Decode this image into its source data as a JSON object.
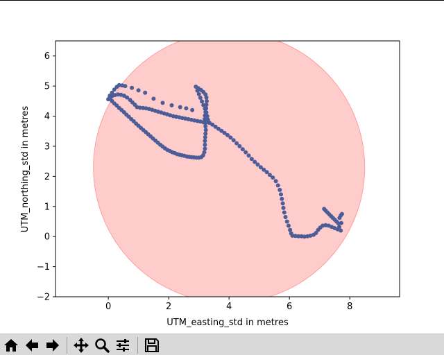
{
  "toolbar": {
    "buttons": [
      {
        "name": "home-button",
        "icon": "home-icon"
      },
      {
        "name": "back-button",
        "icon": "arrow-left-icon"
      },
      {
        "name": "forward-button",
        "icon": "arrow-right-icon"
      },
      {
        "name": "pan-button",
        "icon": "move-icon"
      },
      {
        "name": "zoom-button",
        "icon": "magnifier-icon"
      },
      {
        "name": "configure-subplots-button",
        "icon": "sliders-icon"
      },
      {
        "name": "save-button",
        "icon": "floppy-disk-icon"
      }
    ]
  },
  "chart_data": {
    "type": "scatter",
    "title": "",
    "xlabel": "UTM_easting_std in metres",
    "ylabel": "UTM_northing_std in metres",
    "xlim": [
      -1.75,
      9.65
    ],
    "ylim": [
      -2.0,
      6.5
    ],
    "x_ticks": [
      0,
      2,
      4,
      6,
      8
    ],
    "y_ticks": [
      -2,
      -1,
      0,
      1,
      2,
      3,
      4,
      5,
      6
    ],
    "grid": false,
    "marker_color": "#4c5c96",
    "circle": {
      "center": [
        4.0,
        2.3
      ],
      "radius": 4.5,
      "fill": "#ff0000",
      "alpha": 0.2
    },
    "points": [
      [
        0.05,
        4.58
      ],
      [
        0.12,
        4.5
      ],
      [
        0.2,
        4.42
      ],
      [
        0.28,
        4.35
      ],
      [
        0.36,
        4.27
      ],
      [
        0.44,
        4.2
      ],
      [
        0.52,
        4.13
      ],
      [
        0.6,
        4.05
      ],
      [
        0.68,
        3.98
      ],
      [
        0.76,
        3.9
      ],
      [
        0.84,
        3.83
      ],
      [
        0.92,
        3.75
      ],
      [
        1.0,
        3.68
      ],
      [
        1.08,
        3.61
      ],
      [
        1.16,
        3.54
      ],
      [
        1.24,
        3.47
      ],
      [
        1.32,
        3.4
      ],
      [
        1.4,
        3.33
      ],
      [
        1.48,
        3.26
      ],
      [
        1.56,
        3.19
      ],
      [
        1.64,
        3.12
      ],
      [
        1.72,
        3.05
      ],
      [
        1.8,
        2.99
      ],
      [
        1.88,
        2.93
      ],
      [
        1.96,
        2.88
      ],
      [
        2.04,
        2.84
      ],
      [
        2.12,
        2.8
      ],
      [
        2.2,
        2.77
      ],
      [
        2.28,
        2.74
      ],
      [
        2.36,
        2.72
      ],
      [
        2.44,
        2.7
      ],
      [
        2.52,
        2.68
      ],
      [
        2.6,
        2.66
      ],
      [
        2.68,
        2.65
      ],
      [
        2.76,
        2.64
      ],
      [
        2.84,
        2.63
      ],
      [
        2.92,
        2.62
      ],
      [
        3.0,
        2.62
      ],
      [
        3.08,
        2.64
      ],
      [
        3.14,
        2.7
      ],
      [
        3.18,
        2.8
      ],
      [
        3.2,
        2.92
      ],
      [
        3.2,
        3.05
      ],
      [
        3.2,
        3.18
      ],
      [
        3.21,
        3.3
      ],
      [
        3.22,
        3.42
      ],
      [
        3.23,
        3.54
      ],
      [
        3.22,
        3.66
      ],
      [
        3.2,
        3.78
      ],
      [
        3.19,
        3.9
      ],
      [
        3.2,
        4.02
      ],
      [
        3.22,
        4.14
      ],
      [
        3.24,
        4.26
      ],
      [
        3.25,
        4.38
      ],
      [
        3.26,
        4.5
      ],
      [
        3.25,
        4.62
      ],
      [
        3.22,
        4.72
      ],
      [
        3.15,
        4.8
      ],
      [
        3.07,
        4.87
      ],
      [
        2.98,
        4.93
      ],
      [
        2.9,
        4.98
      ],
      [
        2.95,
        4.85
      ],
      [
        3.0,
        4.73
      ],
      [
        3.05,
        4.61
      ],
      [
        3.1,
        4.49
      ],
      [
        3.15,
        4.37
      ],
      [
        3.2,
        4.25
      ],
      [
        3.25,
        4.12
      ],
      [
        3.28,
        4.0
      ],
      [
        3.3,
        3.88
      ],
      [
        3.35,
        3.78
      ],
      [
        3.45,
        3.72
      ],
      [
        3.55,
        3.65
      ],
      [
        3.65,
        3.58
      ],
      [
        3.75,
        3.51
      ],
      [
        3.85,
        3.44
      ],
      [
        3.95,
        3.37
      ],
      [
        4.05,
        3.29
      ],
      [
        4.15,
        3.2
      ],
      [
        4.25,
        3.1
      ],
      [
        4.35,
        3.0
      ],
      [
        4.45,
        2.9
      ],
      [
        4.55,
        2.8
      ],
      [
        4.65,
        2.69
      ],
      [
        4.75,
        2.58
      ],
      [
        4.85,
        2.48
      ],
      [
        4.95,
        2.39
      ],
      [
        5.05,
        2.3
      ],
      [
        5.15,
        2.22
      ],
      [
        5.25,
        2.14
      ],
      [
        5.35,
        2.05
      ],
      [
        5.45,
        1.96
      ],
      [
        5.55,
        1.84
      ],
      [
        5.62,
        1.7
      ],
      [
        5.68,
        1.55
      ],
      [
        5.72,
        1.4
      ],
      [
        5.75,
        1.25
      ],
      [
        5.78,
        1.1
      ],
      [
        5.8,
        0.95
      ],
      [
        5.83,
        0.8
      ],
      [
        5.87,
        0.65
      ],
      [
        5.92,
        0.5
      ],
      [
        5.97,
        0.36
      ],
      [
        6.02,
        0.22
      ],
      [
        6.06,
        0.1
      ],
      [
        6.1,
        0.03
      ],
      [
        6.2,
        0.02
      ],
      [
        6.3,
        0.01
      ],
      [
        6.4,
        0.01
      ],
      [
        6.5,
        0.0
      ],
      [
        6.6,
        0.01
      ],
      [
        6.7,
        0.03
      ],
      [
        6.8,
        0.06
      ],
      [
        6.88,
        0.12
      ],
      [
        6.95,
        0.22
      ],
      [
        7.02,
        0.3
      ],
      [
        7.1,
        0.36
      ],
      [
        7.2,
        0.38
      ],
      [
        7.3,
        0.36
      ],
      [
        7.4,
        0.32
      ],
      [
        7.5,
        0.28
      ],
      [
        7.6,
        0.24
      ],
      [
        7.7,
        0.2
      ],
      [
        7.15,
        0.92
      ],
      [
        7.2,
        0.86
      ],
      [
        7.26,
        0.8
      ],
      [
        7.32,
        0.74
      ],
      [
        7.38,
        0.68
      ],
      [
        7.44,
        0.62
      ],
      [
        7.5,
        0.56
      ],
      [
        7.56,
        0.5
      ],
      [
        7.62,
        0.44
      ],
      [
        7.66,
        0.62
      ],
      [
        7.7,
        0.7
      ],
      [
        7.74,
        0.75
      ],
      [
        7.65,
        0.32
      ],
      [
        7.72,
        0.45
      ],
      [
        3.35,
        3.78
      ],
      [
        3.25,
        3.79
      ],
      [
        3.15,
        3.8
      ],
      [
        3.05,
        3.82
      ],
      [
        2.95,
        3.84
      ],
      [
        2.85,
        3.86
      ],
      [
        2.75,
        3.88
      ],
      [
        2.65,
        3.9
      ],
      [
        2.55,
        3.92
      ],
      [
        2.45,
        3.94
      ],
      [
        2.35,
        3.96
      ],
      [
        2.25,
        3.98
      ],
      [
        2.15,
        4.0
      ],
      [
        2.05,
        4.03
      ],
      [
        1.95,
        4.06
      ],
      [
        1.85,
        4.09
      ],
      [
        1.75,
        4.12
      ],
      [
        1.65,
        4.15
      ],
      [
        1.55,
        4.18
      ],
      [
        1.45,
        4.21
      ],
      [
        1.35,
        4.24
      ],
      [
        1.25,
        4.26
      ],
      [
        1.15,
        4.27
      ],
      [
        1.05,
        4.28
      ],
      [
        0.95,
        4.3
      ],
      [
        0.88,
        4.38
      ],
      [
        0.8,
        4.46
      ],
      [
        0.72,
        4.54
      ],
      [
        0.62,
        4.62
      ],
      [
        0.52,
        4.68
      ],
      [
        0.42,
        4.71
      ],
      [
        0.32,
        4.72
      ],
      [
        0.22,
        4.7
      ],
      [
        0.12,
        4.66
      ],
      [
        0.04,
        4.62
      ],
      [
        0.0,
        4.56
      ],
      [
        0.05,
        4.68
      ],
      [
        0.12,
        4.78
      ],
      [
        0.2,
        4.88
      ],
      [
        0.28,
        4.97
      ],
      [
        0.36,
        5.03
      ],
      [
        0.46,
        5.02
      ],
      [
        0.56,
        5.0
      ],
      [
        0.78,
        4.94
      ],
      [
        1.0,
        4.86
      ],
      [
        1.22,
        4.78
      ],
      [
        1.5,
        4.58
      ],
      [
        1.8,
        4.44
      ],
      [
        2.1,
        4.36
      ],
      [
        2.38,
        4.3
      ],
      [
        2.58,
        4.26
      ],
      [
        2.78,
        4.2
      ]
    ]
  }
}
